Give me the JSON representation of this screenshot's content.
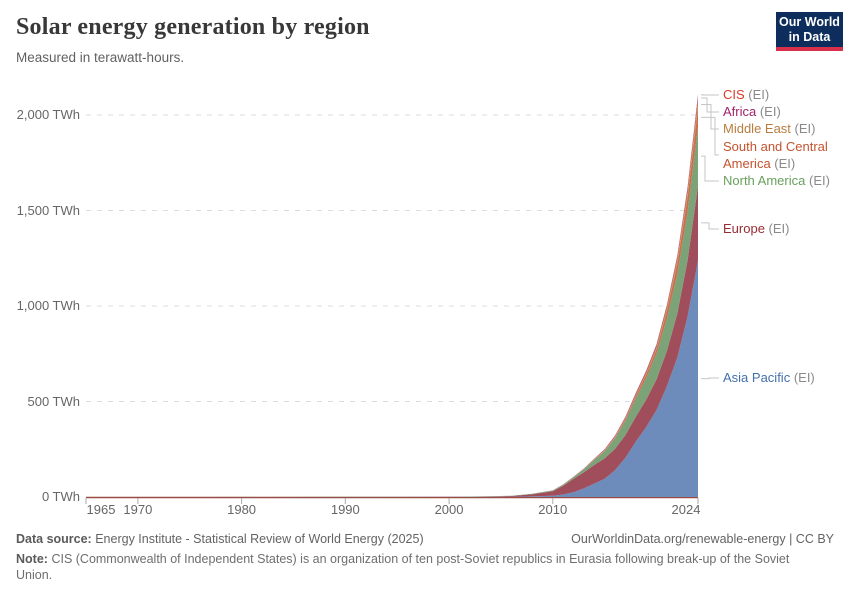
{
  "header": {
    "title": "Solar energy generation by region",
    "subtitle": "Measured in terawatt-hours.",
    "logo": {
      "line1": "Our World",
      "line2": "in Data",
      "navy": "#0d2e5c",
      "red": "#d8304a"
    }
  },
  "chart_data": {
    "type": "area",
    "stacked": true,
    "title": "Solar energy generation by region",
    "unit": "TWh",
    "xlim": [
      1965,
      2024
    ],
    "ylim": [
      0,
      2100
    ],
    "grid": "dashed-horizontal",
    "legend_position": "right",
    "x": [
      1965,
      1975,
      1985,
      1990,
      1995,
      2000,
      2002,
      2004,
      2006,
      2008,
      2010,
      2011,
      2012,
      2013,
      2014,
      2015,
      2016,
      2017,
      2018,
      2019,
      2020,
      2021,
      2022,
      2023,
      2024
    ],
    "series": [
      {
        "name": "Asia Pacific",
        "suffix": "(EI)",
        "fill": "#6d8cbb",
        "label_color": "#4470ad",
        "values": [
          0,
          0,
          0.1,
          0.1,
          0.3,
          0.5,
          0.8,
          1.2,
          1.7,
          3,
          7,
          13,
          25,
          45,
          70,
          95,
          140,
          205,
          290,
          365,
          455,
          580,
          730,
          945,
          1240
        ]
      },
      {
        "name": "Europe",
        "suffix": "(EI)",
        "fill": "#a14e5c",
        "label_color": "#992c33",
        "values": [
          0,
          0,
          0,
          0.1,
          0.2,
          0.4,
          0.7,
          1.5,
          3.5,
          11,
          23,
          46,
          70,
          85,
          98,
          107,
          112,
          119,
          130,
          144,
          160,
          185,
          230,
          295,
          390
        ]
      },
      {
        "name": "North America",
        "suffix": "(EI)",
        "fill": "#7ba377",
        "label_color": "#68a05c",
        "values": [
          0,
          0.1,
          0.2,
          0.6,
          0.7,
          0.8,
          0.9,
          1.1,
          1.5,
          2.5,
          4,
          5.5,
          9,
          15,
          26,
          37,
          55,
          75,
          95,
          112,
          135,
          170,
          207,
          253,
          310
        ]
      },
      {
        "name": "South and Central America",
        "suffix": "(EI)",
        "fill": "#c86f4d",
        "label_color": "#c4532e",
        "values": [
          0,
          0,
          0,
          0,
          0,
          0,
          0,
          0,
          0,
          0.1,
          0.2,
          0.3,
          0.5,
          0.8,
          1.3,
          2.5,
          4.5,
          8,
          13,
          18,
          23,
          38,
          55,
          76,
          95
        ]
      },
      {
        "name": "Middle East",
        "suffix": "(EI)",
        "fill": "#d08f4f",
        "label_color": "#b87e41",
        "values": [
          0,
          0,
          0,
          0,
          0,
          0,
          0,
          0,
          0,
          0.1,
          0.2,
          0.3,
          0.5,
          0.8,
          1.5,
          2.5,
          3.5,
          4.5,
          6,
          9,
          12,
          16,
          22,
          30,
          40
        ]
      },
      {
        "name": "Africa",
        "suffix": "(EI)",
        "fill": "#b05577",
        "label_color": "#a1246b",
        "values": [
          0,
          0,
          0,
          0,
          0,
          0.1,
          0.1,
          0.2,
          0.2,
          0.3,
          0.5,
          0.8,
          1.5,
          2.5,
          4,
          5,
          6.5,
          8,
          10,
          11.5,
          13,
          15,
          17.5,
          22,
          28
        ]
      },
      {
        "name": "CIS",
        "suffix": "(EI)",
        "fill": "#c4473a",
        "label_color": "#d73c27",
        "values": [
          0,
          0,
          0,
          0,
          0,
          0,
          0,
          0,
          0,
          0,
          0,
          0,
          0.1,
          0.1,
          0.3,
          0.5,
          0.7,
          1,
          1.3,
          1.8,
          2.2,
          2.6,
          3,
          4,
          5
        ]
      }
    ],
    "y_ticks": [
      {
        "value": 0,
        "label": "0 TWh"
      },
      {
        "value": 500,
        "label": "500 TWh"
      },
      {
        "value": 1000,
        "label": "1,000 TWh"
      },
      {
        "value": 1500,
        "label": "1,500 TWh"
      },
      {
        "value": 2000,
        "label": "2,000 TWh"
      }
    ],
    "x_ticks": [
      {
        "year": 1965,
        "label": "1965"
      },
      {
        "year": 1970,
        "label": "1970"
      },
      {
        "year": 1980,
        "label": "1980"
      },
      {
        "year": 1990,
        "label": "1990"
      },
      {
        "year": 2000,
        "label": "2000"
      },
      {
        "year": 2010,
        "label": "2010"
      },
      {
        "year": 2024,
        "label": "2024"
      }
    ]
  },
  "footer": {
    "source_label": "Data source:",
    "source_text": "Energy Institute - Statistical Review of World Energy (2025)",
    "credit": "OurWorldinData.org/renewable-energy | CC BY",
    "note_label": "Note:",
    "note_text": "CIS (Commonwealth of Independent States) is an organization of ten post-Soviet republics in Eurasia following break-up of the Soviet Union."
  }
}
